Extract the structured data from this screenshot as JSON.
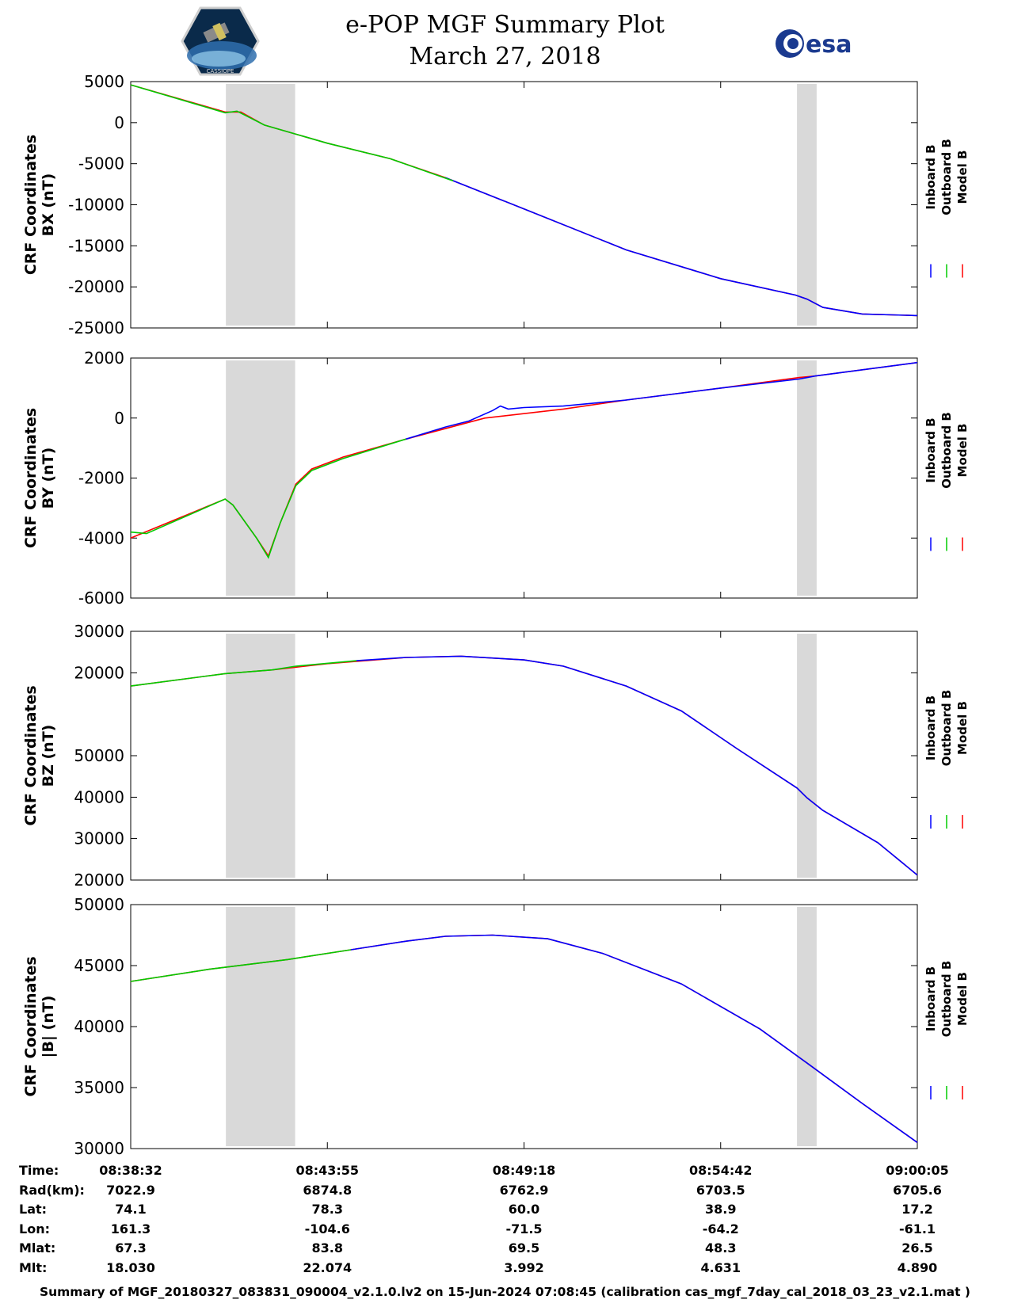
{
  "header": {
    "title_line1": "e-POP MGF Summary Plot",
    "title_line2": "March 27, 2018",
    "left_logo_text": "CASSIOPE",
    "right_logo_text": "esa"
  },
  "colors": {
    "inboard": "#0000ff",
    "outboard": "#00cc00",
    "model": "#ff0000",
    "shade": "#d9d9d9"
  },
  "chart_data": [
    {
      "type": "line",
      "ylabel": [
        "CRF Coordinates",
        "BX (nT)"
      ],
      "ylim": [
        -25000,
        5000
      ],
      "yticks": [
        {
          "v": 5000,
          "label": "5000"
        },
        {
          "v": 0,
          "label": "0"
        },
        {
          "v": -5000,
          "label": "-5000"
        },
        {
          "v": -10000,
          "label": "-10000"
        },
        {
          "v": -15000,
          "label": "-15000"
        },
        {
          "v": -20000,
          "label": "-20000"
        },
        {
          "v": -25000,
          "label": "-25000"
        }
      ],
      "legend": [
        "Inboard B",
        "Outboard B",
        "Model B"
      ],
      "shaded": [
        [
          0.121,
          0.209
        ],
        [
          0.847,
          0.872
        ]
      ],
      "series": [
        {
          "name": "Model B",
          "points": [
            [
              0,
              4600
            ],
            [
              0.12,
              1300
            ],
            [
              0.14,
              1300
            ],
            [
              0.17,
              -300
            ],
            [
              0.25,
              -2500
            ],
            [
              0.33,
              -4400
            ],
            [
              0.4,
              -6700
            ],
            [
              0.5,
              -10500
            ],
            [
              0.63,
              -15500
            ],
            [
              0.75,
              -19000
            ],
            [
              0.845,
              -21000
            ],
            [
              0.86,
              -21500
            ],
            [
              0.88,
              -22500
            ],
            [
              0.93,
              -23300
            ],
            [
              1,
              -23500
            ]
          ]
        },
        {
          "name": "Inboard B",
          "points": [
            [
              0.4,
              -6700
            ],
            [
              0.5,
              -10500
            ],
            [
              0.63,
              -15500
            ],
            [
              0.75,
              -19000
            ],
            [
              0.845,
              -21000
            ],
            [
              0.86,
              -21500
            ],
            [
              0.88,
              -22500
            ],
            [
              0.93,
              -23300
            ],
            [
              1,
              -23500
            ]
          ]
        },
        {
          "name": "Outboard B",
          "points": [
            [
              0,
              4600
            ],
            [
              0.12,
              1200
            ],
            [
              0.135,
              1400
            ],
            [
              0.17,
              -300
            ],
            [
              0.25,
              -2500
            ],
            [
              0.33,
              -4400
            ],
            [
              0.41,
              -7100
            ]
          ]
        }
      ]
    },
    {
      "type": "line",
      "ylabel": [
        "CRF Coordinates",
        "BY (nT)"
      ],
      "ylim": [
        -6000,
        2000
      ],
      "yticks": [
        {
          "v": 2000,
          "label": "2000"
        },
        {
          "v": 0,
          "label": "0"
        },
        {
          "v": -2000,
          "label": "-2000"
        },
        {
          "v": -4000,
          "label": "-4000"
        },
        {
          "v": -6000,
          "label": "-6000"
        }
      ],
      "legend": [
        "Inboard B",
        "Outboard B",
        "Model B"
      ],
      "shaded": [
        [
          0.121,
          0.209
        ],
        [
          0.847,
          0.872
        ]
      ],
      "series": [
        {
          "name": "Model B",
          "points": [
            [
              0,
              -4000
            ],
            [
              0.12,
              -2700
            ],
            [
              0.13,
              -2900
            ],
            [
              0.16,
              -4000
            ],
            [
              0.175,
              -4600
            ],
            [
              0.19,
              -3500
            ],
            [
              0.21,
              -2200
            ],
            [
              0.23,
              -1700
            ],
            [
              0.27,
              -1300
            ],
            [
              0.35,
              -700
            ],
            [
              0.45,
              0
            ],
            [
              0.55,
              300
            ],
            [
              0.63,
              600
            ],
            [
              0.75,
              1000
            ],
            [
              0.85,
              1350
            ],
            [
              0.87,
              1400
            ],
            [
              1,
              1850
            ]
          ]
        },
        {
          "name": "Inboard B",
          "points": [
            [
              0.35,
              -700
            ],
            [
              0.4,
              -300
            ],
            [
              0.43,
              -100
            ],
            [
              0.46,
              250
            ],
            [
              0.47,
              400
            ],
            [
              0.48,
              300
            ],
            [
              0.5,
              350
            ],
            [
              0.55,
              400
            ],
            [
              0.63,
              600
            ],
            [
              0.75,
              1000
            ],
            [
              0.85,
              1300
            ],
            [
              0.87,
              1400
            ],
            [
              1,
              1850
            ]
          ]
        },
        {
          "name": "Outboard B",
          "points": [
            [
              0,
              -3800
            ],
            [
              0.02,
              -3850
            ],
            [
              0.12,
              -2700
            ],
            [
              0.13,
              -2900
            ],
            [
              0.16,
              -4000
            ],
            [
              0.175,
              -4650
            ],
            [
              0.19,
              -3500
            ],
            [
              0.21,
              -2250
            ],
            [
              0.23,
              -1750
            ],
            [
              0.27,
              -1350
            ],
            [
              0.35,
              -700
            ]
          ]
        }
      ]
    },
    {
      "type": "line",
      "ylabel": [
        "CRF Coordinates",
        "BZ (nT)"
      ],
      "yticks": [
        {
          "f": 0.0,
          "label": "30000"
        },
        {
          "f": 0.167,
          "label": "20000"
        },
        {
          "f": 0.5,
          "label": "50000"
        },
        {
          "f": 0.667,
          "label": "40000"
        },
        {
          "f": 0.833,
          "label": "30000"
        },
        {
          "f": 1.0,
          "label": "20000"
        }
      ],
      "legend": [
        "Inboard B",
        "Outboard B",
        "Model B"
      ],
      "shaded": [
        [
          0.121,
          0.209
        ],
        [
          0.847,
          0.872
        ]
      ],
      "series": [
        {
          "name": "Model B",
          "points": [
            [
              0,
              0.22
            ],
            [
              0.12,
              0.17
            ],
            [
              0.18,
              0.155
            ],
            [
              0.25,
              0.13
            ],
            [
              0.35,
              0.105
            ],
            [
              0.42,
              0.1
            ],
            [
              0.5,
              0.115
            ],
            [
              0.55,
              0.14
            ],
            [
              0.63,
              0.22
            ],
            [
              0.7,
              0.32
            ],
            [
              0.77,
              0.47
            ],
            [
              0.847,
              0.63
            ],
            [
              0.86,
              0.67
            ],
            [
              0.88,
              0.72
            ],
            [
              0.95,
              0.85
            ],
            [
              1,
              0.98
            ]
          ]
        },
        {
          "name": "Inboard B",
          "points": [
            [
              0.287,
              0.118
            ],
            [
              0.35,
              0.105
            ],
            [
              0.42,
              0.1
            ],
            [
              0.5,
              0.115
            ],
            [
              0.55,
              0.14
            ],
            [
              0.63,
              0.22
            ],
            [
              0.7,
              0.32
            ],
            [
              0.77,
              0.47
            ],
            [
              0.847,
              0.63
            ],
            [
              0.86,
              0.67
            ],
            [
              0.88,
              0.72
            ],
            [
              0.95,
              0.85
            ],
            [
              1,
              0.98
            ]
          ]
        },
        {
          "name": "Outboard B",
          "points": [
            [
              0,
              0.22
            ],
            [
              0.12,
              0.17
            ],
            [
              0.18,
              0.155
            ],
            [
              0.21,
              0.14
            ],
            [
              0.287,
              0.118
            ]
          ]
        }
      ]
    },
    {
      "type": "line",
      "ylabel": [
        "CRF Coordinates",
        "|B| (nT)"
      ],
      "ylim": [
        30000,
        50000
      ],
      "yticks": [
        {
          "v": 50000,
          "label": "50000"
        },
        {
          "v": 45000,
          "label": "45000"
        },
        {
          "v": 40000,
          "label": "40000"
        },
        {
          "v": 35000,
          "label": "35000"
        },
        {
          "v": 30000,
          "label": "30000"
        }
      ],
      "legend": [
        "Inboard B",
        "Outboard B",
        "Model B"
      ],
      "shaded": [
        [
          0.121,
          0.209
        ],
        [
          0.847,
          0.872
        ]
      ],
      "series": [
        {
          "name": "Model B",
          "points": [
            [
              0,
              43700
            ],
            [
              0.1,
              44700
            ],
            [
              0.2,
              45500
            ],
            [
              0.28,
              46300
            ],
            [
              0.35,
              47000
            ],
            [
              0.4,
              47400
            ],
            [
              0.46,
              47500
            ],
            [
              0.53,
              47200
            ],
            [
              0.6,
              46000
            ],
            [
              0.7,
              43500
            ],
            [
              0.8,
              39800
            ],
            [
              0.86,
              37000
            ],
            [
              0.93,
              33700
            ],
            [
              1,
              30500
            ]
          ]
        },
        {
          "name": "Inboard B",
          "points": [
            [
              0.28,
              46300
            ],
            [
              0.35,
              47000
            ],
            [
              0.4,
              47400
            ],
            [
              0.46,
              47500
            ],
            [
              0.53,
              47200
            ],
            [
              0.6,
              46000
            ],
            [
              0.7,
              43500
            ],
            [
              0.8,
              39800
            ],
            [
              0.86,
              37000
            ],
            [
              0.93,
              33700
            ],
            [
              1,
              30500
            ]
          ]
        },
        {
          "name": "Outboard B",
          "points": [
            [
              0,
              43700
            ],
            [
              0.1,
              44700
            ],
            [
              0.2,
              45500
            ],
            [
              0.28,
              46300
            ]
          ]
        }
      ]
    }
  ],
  "info": {
    "labels": [
      "Time:",
      "Rad(km):",
      "Lat:",
      "Lon:",
      "Mlat:",
      "Mlt:"
    ],
    "columns": [
      [
        "08:38:32",
        "7022.9",
        "74.1",
        "161.3",
        "67.3",
        "18.030"
      ],
      [
        "08:43:55",
        "6874.8",
        "78.3",
        "-104.6",
        "83.8",
        "22.074"
      ],
      [
        "08:49:18",
        "6762.9",
        "60.0",
        "-71.5",
        "69.5",
        "3.992"
      ],
      [
        "08:54:42",
        "6703.5",
        "38.9",
        "-64.2",
        "48.3",
        "4.631"
      ],
      [
        "09:00:05",
        "6705.6",
        "17.2",
        "-61.1",
        "26.5",
        "4.890"
      ]
    ]
  },
  "footer": "Summary of MGF_20180327_083831_090004_v2.1.0.lv2 on 15-Jun-2024 07:08:45 (calibration cas_mgf_7day_cal_2018_03_23_v2.1.mat )"
}
